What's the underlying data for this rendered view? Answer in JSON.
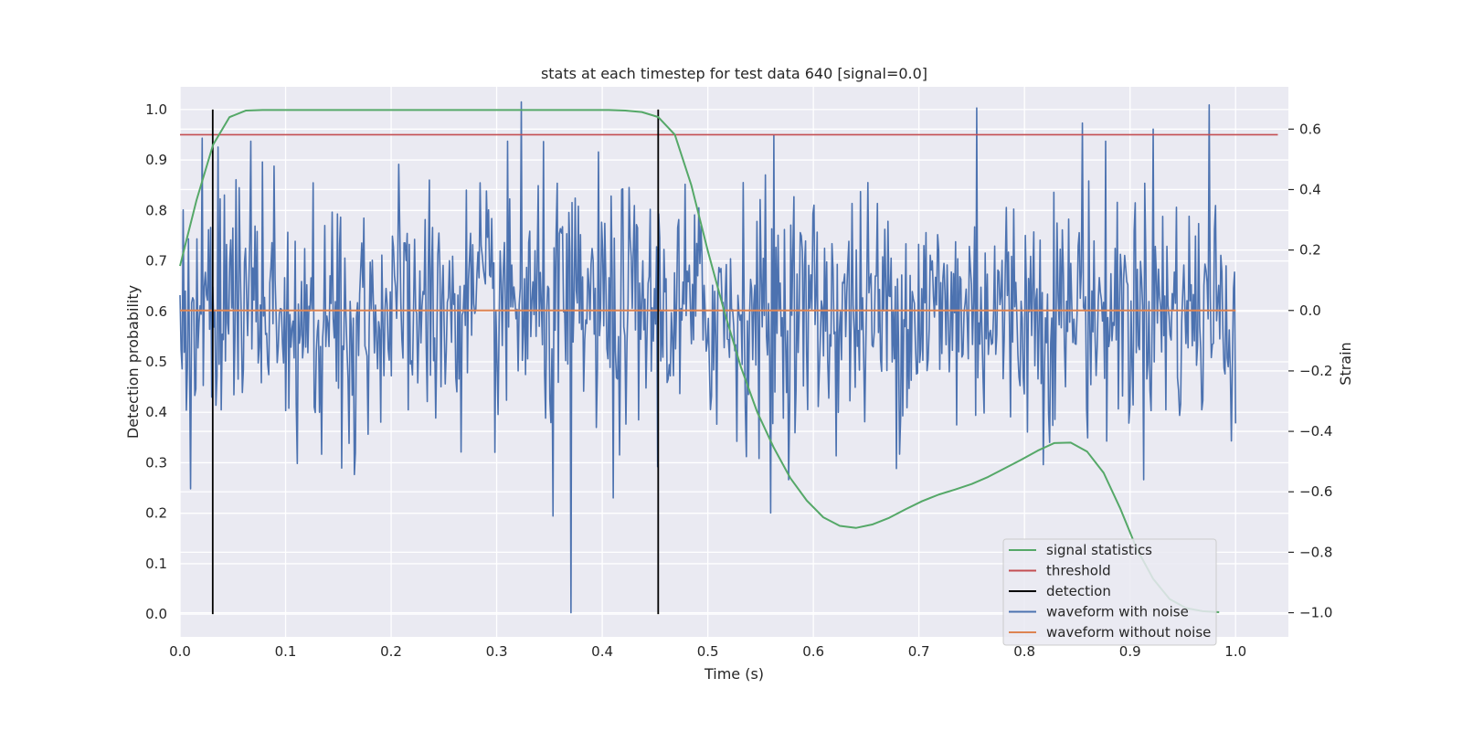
{
  "chart_data": {
    "type": "line",
    "title": "stats at each timestep for test data 640 [signal=0.0]",
    "xlabel": "Time (s)",
    "ylabel": "Detection probability",
    "y2label": "Strain",
    "xlim": [
      0.0,
      1.05
    ],
    "ylim": [
      -0.045,
      1.045
    ],
    "y2lim": [
      -1.08,
      0.74
    ],
    "xticks": [
      "0.0",
      "0.1",
      "0.2",
      "0.3",
      "0.4",
      "0.5",
      "0.6",
      "0.7",
      "0.8",
      "0.9",
      "1.0"
    ],
    "yticks": [
      "0.0",
      "0.1",
      "0.2",
      "0.3",
      "0.4",
      "0.5",
      "0.6",
      "0.7",
      "0.8",
      "0.9",
      "1.0"
    ],
    "y2ticks": [
      "−1.0",
      "−0.8",
      "−0.6",
      "−0.4",
      "−0.2",
      "0.0",
      "0.2",
      "0.4",
      "0.6"
    ],
    "grid": true,
    "legend_position": "lower-right",
    "colors": {
      "background": "#eaeaf2",
      "grid": "#ffffff",
      "signal_statistics": "#55a868",
      "threshold": "#c44e52",
      "detection": "#000000",
      "waveform_with_noise": "#4c72b0",
      "waveform_without_noise": "#dd8452"
    },
    "series": [
      {
        "name": "signal statistics",
        "axis": "left",
        "x": [
          0.0,
          0.0156,
          0.0313,
          0.0469,
          0.0625,
          0.0781,
          0.0938,
          0.1094,
          0.125,
          0.1406,
          0.1563,
          0.1719,
          0.1875,
          0.2031,
          0.2188,
          0.2344,
          0.25,
          0.2656,
          0.2813,
          0.2969,
          0.3125,
          0.3281,
          0.3438,
          0.3594,
          0.375,
          0.3906,
          0.4063,
          0.4219,
          0.4375,
          0.4531,
          0.4688,
          0.4844,
          0.5,
          0.5156,
          0.5313,
          0.5469,
          0.5625,
          0.5781,
          0.5938,
          0.6094,
          0.625,
          0.6406,
          0.6563,
          0.6719,
          0.6875,
          0.7031,
          0.7188,
          0.7344,
          0.75,
          0.7656,
          0.7813,
          0.7969,
          0.8125,
          0.8281,
          0.8438,
          0.8594,
          0.875,
          0.8906,
          0.9063,
          0.9219,
          0.9375,
          0.9531,
          0.9688,
          0.9844
        ],
        "values": [
          0.69,
          0.82,
          0.93,
          0.985,
          0.998,
          0.999,
          0.999,
          0.999,
          0.999,
          0.999,
          0.999,
          0.999,
          0.999,
          0.999,
          0.999,
          0.999,
          0.999,
          0.999,
          0.999,
          0.999,
          0.999,
          0.999,
          0.999,
          0.999,
          0.999,
          0.999,
          0.999,
          0.998,
          0.995,
          0.985,
          0.95,
          0.85,
          0.72,
          0.6,
          0.49,
          0.4,
          0.33,
          0.27,
          0.225,
          0.192,
          0.175,
          0.171,
          0.178,
          0.191,
          0.208,
          0.224,
          0.237,
          0.247,
          0.258,
          0.272,
          0.289,
          0.306,
          0.324,
          0.339,
          0.34,
          0.322,
          0.28,
          0.21,
          0.13,
          0.07,
          0.03,
          0.012,
          0.006,
          0.004
        ]
      },
      {
        "name": "threshold",
        "axis": "left",
        "x": [
          0.0,
          1.04
        ],
        "values": [
          0.95,
          0.95
        ]
      },
      {
        "name": "detection",
        "axis": "left",
        "segments": [
          {
            "x": 0.031,
            "y": [
              0.0,
              1.0
            ]
          },
          {
            "x": 0.453,
            "y": [
              0.0,
              1.0
            ]
          }
        ]
      },
      {
        "name": "waveform with noise",
        "axis": "right",
        "n_points": 1000,
        "amplitude_std": 0.2,
        "peaks": [
          {
            "x": 0.323,
            "value": 0.69
          },
          {
            "x": 0.37,
            "value": -1.0
          },
          {
            "x": 0.975,
            "value": 0.68
          },
          {
            "x": 0.755,
            "value": 0.67
          },
          {
            "x": 0.855,
            "value": 0.62
          },
          {
            "x": 0.922,
            "value": 0.6
          },
          {
            "x": 0.563,
            "value": 0.58
          },
          {
            "x": 0.021,
            "value": 0.57
          },
          {
            "x": 0.353,
            "value": -0.68
          },
          {
            "x": 0.56,
            "value": -0.67
          },
          {
            "x": 0.41,
            "value": -0.62
          },
          {
            "x": 0.01,
            "value": -0.59
          }
        ]
      },
      {
        "name": "waveform without noise",
        "axis": "right",
        "x": [
          0.0,
          1.0
        ],
        "values": [
          0.0,
          0.0
        ]
      }
    ]
  }
}
